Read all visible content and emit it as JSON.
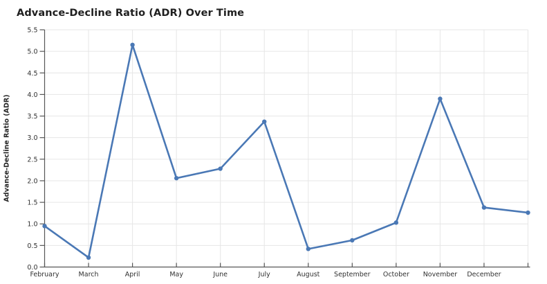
{
  "page": {
    "background_color": "#ffffff"
  },
  "chart_data": {
    "type": "line",
    "title": "Advance-Decline Ratio (ADR) Over Time",
    "xlabel": "",
    "ylabel": "Advance-Decline Ratio (ADR)",
    "categories": [
      "February",
      "March",
      "April",
      "May",
      "June",
      "July",
      "August",
      "September",
      "October",
      "November",
      "December",
      ""
    ],
    "values": [
      0.95,
      0.22,
      5.15,
      2.06,
      2.28,
      3.37,
      0.42,
      0.62,
      1.03,
      3.9,
      1.38,
      1.26
    ],
    "series_name": "Advance-Decline Ratio (ADR)",
    "ylim": [
      0.0,
      5.5
    ],
    "yticks": [
      0.0,
      0.5,
      1.0,
      1.5,
      2.0,
      2.5,
      3.0,
      3.5,
      4.0,
      4.5,
      5.0,
      5.5
    ],
    "grid": "on",
    "legend": "none",
    "marker": "circle",
    "line_color": "#4a78b5",
    "grid_color": "#e6e6e6",
    "axis_color": "#555555",
    "tick_label_color": "#303030",
    "title_color": "#1f1f1f"
  }
}
